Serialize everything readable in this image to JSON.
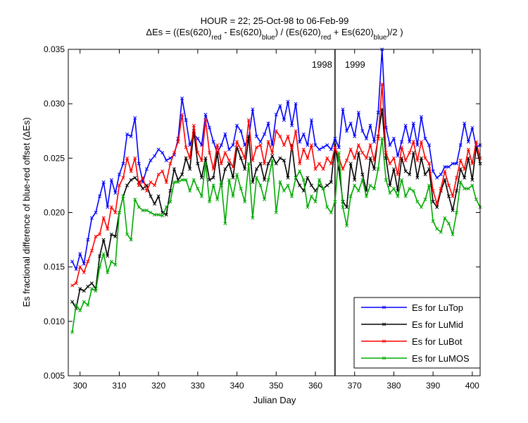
{
  "chart_data": {
    "type": "line",
    "title": "HOUR = 22; 25-Oct-98 to 06-Feb-99",
    "title_line2": [
      {
        "text": "ΔEs = ((Es(620)"
      },
      {
        "text": "red",
        "subscript": true
      },
      {
        "text": " - Es(620)"
      },
      {
        "text": "blue",
        "subscript": true
      },
      {
        "text": ") / (Es(620)"
      },
      {
        "text": "red",
        "subscript": true
      },
      {
        "text": " + Es(620)"
      },
      {
        "text": "blue",
        "subscript": true
      },
      {
        "text": ")/2  )"
      }
    ],
    "xlabel": "Julian Day",
    "ylabel": "Es fractional difference of blue-red offset (ΔEs)",
    "xlim": [
      297,
      402
    ],
    "xticks": [
      300,
      310,
      320,
      330,
      340,
      350,
      360,
      370,
      380,
      390,
      400
    ],
    "ylim": [
      0.005,
      0.035
    ],
    "yticks": [
      0.005,
      {
        "value": 0.01,
        "label": "0.010"
      },
      0.015,
      {
        "value": 0.02,
        "label": "0.020"
      },
      0.025,
      {
        "value": 0.03,
        "label": "0.030"
      },
      0.035
    ],
    "legend": "lower right",
    "marker": "x",
    "vline": {
      "x": 365,
      "left_label": "1998",
      "right_label": "1999"
    },
    "x": [
      298,
      299,
      300,
      301,
      302,
      303,
      304,
      305,
      306,
      307,
      308,
      309,
      310,
      311,
      312,
      313,
      314,
      315,
      316,
      317,
      318,
      319,
      320,
      321,
      322,
      323,
      324,
      325,
      326,
      327,
      328,
      329,
      330,
      331,
      332,
      333,
      334,
      335,
      336,
      337,
      338,
      339,
      340,
      341,
      342,
      343,
      344,
      345,
      346,
      347,
      348,
      349,
      350,
      351,
      352,
      353,
      354,
      355,
      356,
      357,
      358,
      359,
      360,
      361,
      362,
      363,
      364,
      365,
      366,
      367,
      368,
      369,
      370,
      371,
      372,
      373,
      374,
      375,
      376,
      377,
      378,
      379,
      380,
      381,
      382,
      383,
      384,
      385,
      386,
      387,
      388,
      389,
      390,
      391,
      392,
      393,
      394,
      395,
      396,
      397,
      398,
      399,
      400,
      401,
      402
    ],
    "series": [
      {
        "name": "Es for LuTop",
        "color": "#0000ff",
        "values": [
          0.0155,
          0.0148,
          0.0162,
          0.0153,
          0.0175,
          0.0195,
          0.02,
          0.0215,
          0.0228,
          0.0205,
          0.023,
          0.0218,
          0.0235,
          0.0245,
          0.0272,
          0.027,
          0.0287,
          0.0245,
          0.0228,
          0.024,
          0.0248,
          0.0252,
          0.0258,
          0.0255,
          0.0248,
          0.025,
          0.0253,
          0.0268,
          0.0305,
          0.0285,
          0.0262,
          0.0272,
          0.0268,
          0.0262,
          0.029,
          0.0278,
          0.0265,
          0.0255,
          0.0262,
          0.0272,
          0.0258,
          0.0262,
          0.028,
          0.0275,
          0.0262,
          0.0268,
          0.0295,
          0.027,
          0.0265,
          0.0272,
          0.0282,
          0.0262,
          0.029,
          0.0298,
          0.0285,
          0.0302,
          0.028,
          0.03,
          0.0265,
          0.0272,
          0.0262,
          0.0285,
          0.0262,
          0.0258,
          0.026,
          0.0262,
          0.0258,
          0.0268,
          0.026,
          0.0295,
          0.0275,
          0.0282,
          0.027,
          0.0292,
          0.0275,
          0.0268,
          0.028,
          0.0265,
          0.0292,
          0.035,
          0.0278,
          0.0262,
          0.0268,
          0.0252,
          0.0265,
          0.028,
          0.0265,
          0.0282,
          0.0262,
          0.0288,
          0.0268,
          0.0262,
          0.0238,
          0.0232,
          0.0235,
          0.0242,
          0.0242,
          0.0245,
          0.0245,
          0.0262,
          0.0282,
          0.0265,
          0.0278,
          0.026,
          0.0262
        ]
      },
      {
        "name": "Es for LuMid",
        "color": "#000000",
        "values": [
          0.0118,
          0.0112,
          0.013,
          0.0128,
          0.0132,
          0.0135,
          0.013,
          0.016,
          0.0175,
          0.016,
          0.018,
          0.0178,
          0.02,
          0.0215,
          0.0225,
          0.023,
          0.0232,
          0.0228,
          0.0222,
          0.0225,
          0.0215,
          0.0208,
          0.0215,
          0.02,
          0.0198,
          0.022,
          0.024,
          0.023,
          0.0235,
          0.025,
          0.024,
          0.0275,
          0.0245,
          0.0232,
          0.025,
          0.023,
          0.0232,
          0.0255,
          0.0225,
          0.024,
          0.0245,
          0.0232,
          0.026,
          0.025,
          0.024,
          0.027,
          0.0228,
          0.024,
          0.0245,
          0.023,
          0.0245,
          0.0252,
          0.0245,
          0.025,
          0.0248,
          0.0232,
          0.0262,
          0.0232,
          0.0225,
          0.022,
          0.0232,
          0.0225,
          0.022,
          0.0225,
          0.0222,
          0.0225,
          0.0228,
          0.0262,
          0.024,
          0.021,
          0.0205,
          0.0245,
          0.023,
          0.0255,
          0.0235,
          0.022,
          0.025,
          0.024,
          0.027,
          0.0295,
          0.025,
          0.0225,
          0.024,
          0.022,
          0.025,
          0.0238,
          0.0235,
          0.0255,
          0.0232,
          0.025,
          0.0235,
          0.024,
          0.021,
          0.0205,
          0.022,
          0.023,
          0.0215,
          0.0202,
          0.022,
          0.024,
          0.0232,
          0.025,
          0.023,
          0.026,
          0.0245
        ]
      },
      {
        "name": "Es for LuBot",
        "color": "#ff0000",
        "values": [
          0.0133,
          0.0135,
          0.015,
          0.0145,
          0.0155,
          0.0165,
          0.0178,
          0.018,
          0.0195,
          0.0185,
          0.0205,
          0.02,
          0.0225,
          0.0232,
          0.025,
          0.0238,
          0.025,
          0.0225,
          0.0232,
          0.022,
          0.0228,
          0.0225,
          0.0235,
          0.0238,
          0.0228,
          0.0245,
          0.0255,
          0.0265,
          0.029,
          0.026,
          0.025,
          0.028,
          0.0255,
          0.0248,
          0.0285,
          0.0255,
          0.024,
          0.0262,
          0.0245,
          0.0255,
          0.0248,
          0.0242,
          0.0265,
          0.0258,
          0.025,
          0.0285,
          0.0248,
          0.026,
          0.0262,
          0.0245,
          0.0265,
          0.0255,
          0.0275,
          0.027,
          0.0262,
          0.027,
          0.0258,
          0.0275,
          0.0245,
          0.0258,
          0.025,
          0.0262,
          0.024,
          0.0245,
          0.024,
          0.025,
          0.0245,
          0.026,
          0.025,
          0.024,
          0.0248,
          0.0258,
          0.025,
          0.0262,
          0.0255,
          0.025,
          0.0262,
          0.0248,
          0.0268,
          0.0318,
          0.0255,
          0.0245,
          0.025,
          0.0235,
          0.026,
          0.0248,
          0.0255,
          0.0265,
          0.0248,
          0.0265,
          0.025,
          0.0245,
          0.022,
          0.0208,
          0.0222,
          0.0238,
          0.0225,
          0.0215,
          0.0232,
          0.0248,
          0.024,
          0.0258,
          0.0245,
          0.0265,
          0.025
        ]
      },
      {
        "name": "Es for LuMOS",
        "color": "#00aa00",
        "values": [
          0.009,
          0.0115,
          0.011,
          0.0118,
          0.0115,
          0.013,
          0.0128,
          0.015,
          0.0162,
          0.0145,
          0.0155,
          0.0152,
          0.02,
          0.0215,
          0.018,
          0.0175,
          0.0212,
          0.0205,
          0.0202,
          0.0202,
          0.02,
          0.0198,
          0.0198,
          0.0197,
          0.0205,
          0.021,
          0.0228,
          0.0228,
          0.023,
          0.023,
          0.022,
          0.023,
          0.0222,
          0.0215,
          0.0245,
          0.021,
          0.0225,
          0.0212,
          0.0228,
          0.019,
          0.023,
          0.0215,
          0.0235,
          0.0222,
          0.021,
          0.0245,
          0.0195,
          0.0232,
          0.0225,
          0.0212,
          0.023,
          0.0248,
          0.02,
          0.0228,
          0.022,
          0.0225,
          0.0215,
          0.0232,
          0.0238,
          0.023,
          0.0205,
          0.0215,
          0.021,
          0.023,
          0.0222,
          0.0205,
          0.02,
          0.021,
          0.0255,
          0.0205,
          0.0188,
          0.0215,
          0.0225,
          0.022,
          0.023,
          0.0215,
          0.0225,
          0.0222,
          0.024,
          0.0268,
          0.023,
          0.0218,
          0.0222,
          0.0215,
          0.023,
          0.0215,
          0.0222,
          0.022,
          0.021,
          0.0205,
          0.0212,
          0.0225,
          0.0192,
          0.0185,
          0.0182,
          0.0195,
          0.019,
          0.018,
          0.02,
          0.0228,
          0.0222,
          0.0222,
          0.0225,
          0.0212,
          0.0205
        ]
      }
    ]
  }
}
